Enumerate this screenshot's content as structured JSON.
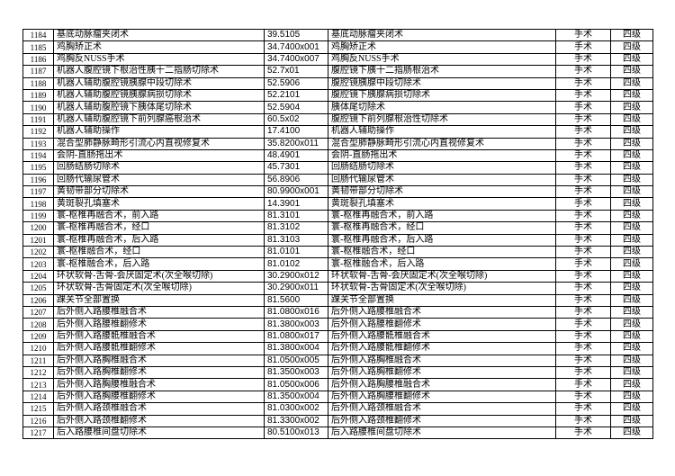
{
  "rows": [
    [
      "1184",
      "基底动脉瘤夹闭术",
      "39.5105",
      "基底动脉瘤夹闭术",
      "手术",
      "四级"
    ],
    [
      "1185",
      "鸡胸矫正术",
      "34.7400x001",
      "鸡胸矫正术",
      "手术",
      "四级"
    ],
    [
      "1186",
      "鸡胸反NUSS手术",
      "34.7400x007",
      "鸡胸反NUSS手术",
      "手术",
      "四级"
    ],
    [
      "1187",
      "机器人腹腔镜下根治性胰十二指肠切除术",
      "52.7x01",
      "腹腔镜下胰十二指肠根治术",
      "手术",
      "四级"
    ],
    [
      "1188",
      "机器人辅助腹腔镜胰腺中段切除术",
      "52.5906",
      "腹腔镜胰腺中段切除术",
      "手术",
      "四级"
    ],
    [
      "1189",
      "机器人辅助腹腔镜胰腺病损切除术",
      "52.2101",
      "腹腔镜下胰腺病损切除术",
      "手术",
      "四级"
    ],
    [
      "1190",
      "机器人辅助腹腔镜下胰体尾切除术",
      "52.5904",
      "胰体尾切除术",
      "手术",
      "四级"
    ],
    [
      "1191",
      "机器人辅助腹腔镜下前列腺癌根治术",
      "60.5x02",
      "腹腔镜下前列腺根治性切除术",
      "手术",
      "四级"
    ],
    [
      "1192",
      "机器人辅助操作",
      "17.4100",
      "机器人辅助操作",
      "手术",
      "四级"
    ],
    [
      "1193",
      "混合型肺静脉畸形引流心内直视修复术",
      "35.8200x011",
      "混合型肺静脉畸形引流心内直视修复术",
      "手术",
      "四级"
    ],
    [
      "1194",
      "会阴-直肠拖出术",
      "48.4901",
      "会阴-直肠拖出术",
      "手术",
      "四级"
    ],
    [
      "1195",
      "回肠结肠切除术",
      "45.7301",
      "回肠结肠切除术",
      "手术",
      "四级"
    ],
    [
      "1196",
      "回肠代输尿管术",
      "56.8906",
      "回肠代输尿管术",
      "手术",
      "四级"
    ],
    [
      "1197",
      "黄韧带部分切除术",
      "80.9900x001",
      "黄韧带部分切除术",
      "手术",
      "四级"
    ],
    [
      "1198",
      "黄斑裂孔填塞术",
      "14.3901",
      "黄斑裂孔填塞术",
      "手术",
      "四级"
    ],
    [
      "1199",
      "寰-枢椎再融合术，前入路",
      "81.3101",
      "寰-枢椎再融合术，前入路",
      "手术",
      "四级"
    ],
    [
      "1200",
      "寰-枢椎再融合术，经口",
      "81.3102",
      "寰-枢椎再融合术，经口",
      "手术",
      "四级"
    ],
    [
      "1201",
      "寰-枢椎再融合术，后入路",
      "81.3103",
      "寰-枢椎再融合术，后入路",
      "手术",
      "四级"
    ],
    [
      "1202",
      "寰-枢椎融合术，经口",
      "81.0101",
      "寰-枢椎融合术，经口",
      "手术",
      "四级"
    ],
    [
      "1203",
      "寰-枢椎融合术，后入路",
      "81.0102",
      "寰-枢椎融合术，后入路",
      "手术",
      "四级"
    ],
    [
      "1204",
      "环状软骨-舌骨-会厌固定术(次全喉切除)",
      "30.2900x012",
      "环状软骨-舌骨-会厌固定术(次全喉切除)",
      "手术",
      "四级"
    ],
    [
      "1205",
      "环状软骨-舌骨固定术(次全喉切除)",
      "30.2900x011",
      "环状软骨-舌骨固定术(次全喉切除)",
      "手术",
      "四级"
    ],
    [
      "1206",
      "踝关节全部置换",
      "81.5600",
      "踝关节全部置换",
      "手术",
      "四级"
    ],
    [
      "1207",
      "后外侧入路腰椎融合术",
      "81.0800x016",
      "后外侧入路腰椎融合术",
      "手术",
      "四级"
    ],
    [
      "1208",
      "后外侧入路腰椎翻修术",
      "81.3800x003",
      "后外侧入路腰椎翻修术",
      "手术",
      "四级"
    ],
    [
      "1209",
      "后外侧入路腰骶椎融合术",
      "81.0800x017",
      "后外侧入路腰骶椎融合术",
      "手术",
      "四级"
    ],
    [
      "1210",
      "后外侧入路腰骶椎翻修术",
      "81.3800x004",
      "后外侧入路腰骶椎翻修术",
      "手术",
      "四级"
    ],
    [
      "1211",
      "后外侧入路胸椎融合术",
      "81.0500x005",
      "后外侧入路胸椎融合术",
      "手术",
      "四级"
    ],
    [
      "1212",
      "后外侧入路胸椎翻修术",
      "81.3500x003",
      "后外侧入路胸椎翻修术",
      "手术",
      "四级"
    ],
    [
      "1213",
      "后外侧入路胸腰椎融合术",
      "81.0500x006",
      "后外侧入路胸腰椎融合术",
      "手术",
      "四级"
    ],
    [
      "1214",
      "后外侧入路胸腰椎翻修术",
      "81.3500x004",
      "后外侧入路胸腰椎翻修术",
      "手术",
      "四级"
    ],
    [
      "1215",
      "后外侧入路颈椎融合术",
      "81.0300x002",
      "后外侧入路颈椎融合术",
      "手术",
      "四级"
    ],
    [
      "1216",
      "后外侧入路颈椎翻修术",
      "81.3300x002",
      "后外侧入路颈椎翻修术",
      "手术",
      "四级"
    ],
    [
      "1217",
      "后入路腰椎间盘切除术",
      "80.5100x013",
      "后入路腰椎间盘切除术",
      "手术",
      "四级"
    ]
  ]
}
